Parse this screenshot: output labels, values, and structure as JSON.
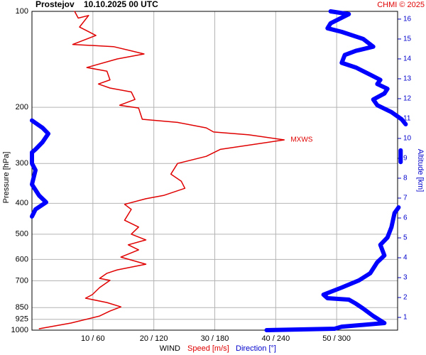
{
  "chart_data": {
    "type": "line",
    "title": "Prostejov",
    "subtitle": "10.10.2025 00 UTC",
    "credit": "CHMI © 2025",
    "ylabel": "Pressure [hPa]",
    "y2label": "Altitude [km]",
    "xlabel": "WIND",
    "annotation": {
      "text": "MXWS",
      "x": 41.4,
      "y": 253
    },
    "y_log": true,
    "grid": true,
    "ylim": [
      1000,
      100
    ],
    "yticks": [
      100,
      200,
      300,
      400,
      500,
      600,
      700,
      850,
      925,
      1000
    ],
    "xlim": [
      0,
      60
    ],
    "x2lim": [
      0,
      360
    ],
    "xticks": [
      {
        "value": 10,
        "label": "10 / 60"
      },
      {
        "value": 20,
        "label": "20 / 120"
      },
      {
        "value": 30,
        "label": "30 / 180"
      },
      {
        "value": 40,
        "label": "40 / 240"
      },
      {
        "value": 50,
        "label": "50 / 300"
      }
    ],
    "y2lim": [
      0.36,
      16.39
    ],
    "y2ticks": [
      1,
      2,
      3,
      4,
      5,
      6,
      7,
      8,
      9,
      10,
      11,
      12,
      13,
      14,
      15,
      16
    ],
    "series": [
      {
        "name": "Speed [m/s]",
        "color": "#e00000",
        "axis": "x",
        "pressure": [
          100,
          105,
          103,
          112,
          119,
          127,
          129,
          133,
          136,
          141,
          150,
          154,
          164,
          169,
          174,
          179,
          189,
          197,
          201,
          218,
          223,
          232,
          239,
          244,
          253,
          271,
          285,
          300,
          324,
          341,
          359,
          378,
          387,
          403,
          418,
          452,
          475,
          500,
          521,
          540,
          560,
          590,
          621,
          647,
          663,
          688,
          698,
          735,
          774,
          794,
          819,
          845,
          871,
          903,
          950,
          990
        ],
        "values": [
          7.0,
          7.6,
          9.3,
          7.8,
          10.5,
          6.7,
          13.4,
          16.3,
          18.4,
          14.0,
          9.0,
          12.3,
          12.8,
          10.9,
          12.8,
          16.3,
          16.9,
          14.4,
          17.5,
          18.1,
          23.9,
          28.6,
          29.8,
          35.6,
          41.4,
          30.9,
          28.6,
          23.9,
          22.8,
          24.5,
          25.1,
          21.6,
          18.7,
          15.2,
          16.3,
          15.2,
          17.5,
          16.3,
          18.7,
          15.8,
          17.5,
          14.6,
          18.7,
          14.0,
          12.3,
          11.1,
          12.8,
          11.1,
          9.9,
          8.8,
          12.3,
          14.6,
          12.8,
          11.1,
          6.4,
          1.2
        ]
      },
      {
        "name": "Direction [°]",
        "color": "#0000ff",
        "axis": "x2",
        "pressure": [
          100,
          102,
          109,
          113,
          116,
          122,
          129,
          133,
          137,
          145,
          150,
          158,
          164,
          169,
          175,
          181,
          189,
          197,
          207,
          218,
          226,
          null,
          273,
          297,
          null,
          220,
          232,
          242,
          257,
          271,
          277,
          300,
          315,
          349,
          378,
          397,
          418,
          440,
          null,
          412,
          429,
          475,
          512,
          540,
          583,
          612,
          663,
          698,
          735,
          774,
          794,
          802,
          826,
          855,
          903,
          950,
          975,
          990,
          1000
        ],
        "values": [
          294,
          312,
          294,
          291,
          305,
          326,
          336,
          319,
          308,
          305,
          319,
          333,
          343,
          340,
          350,
          347,
          336,
          340,
          354,
          364,
          368,
          null,
          363,
          363,
          null,
          0,
          10.5,
          16.1,
          10.5,
          3.5,
          0,
          0,
          3.5,
          0,
          7,
          14,
          3.5,
          0,
          null,
          361,
          357,
          354,
          350,
          343,
          347,
          340,
          333,
          322,
          305,
          287,
          291,
          312,
          319,
          326,
          336,
          347,
          305,
          298,
          231
        ]
      }
    ]
  }
}
